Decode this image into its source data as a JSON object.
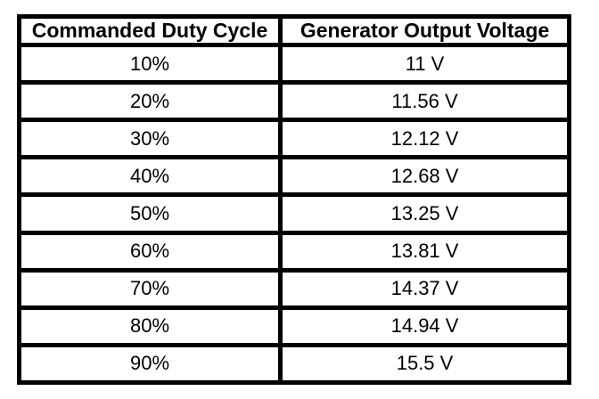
{
  "table": {
    "columns": [
      {
        "label": "Commanded Duty Cycle"
      },
      {
        "label": "Generator Output Voltage"
      }
    ],
    "rows": [
      {
        "duty_cycle": "10%",
        "voltage": "11 V"
      },
      {
        "duty_cycle": "20%",
        "voltage": "11.56 V"
      },
      {
        "duty_cycle": "30%",
        "voltage": "12.12 V"
      },
      {
        "duty_cycle": "40%",
        "voltage": "12.68 V"
      },
      {
        "duty_cycle": "50%",
        "voltage": "13.25 V"
      },
      {
        "duty_cycle": "60%",
        "voltage": "13.81 V"
      },
      {
        "duty_cycle": "70%",
        "voltage": "14.37 V"
      },
      {
        "duty_cycle": "80%",
        "voltage": "14.94 V"
      },
      {
        "duty_cycle": "90%",
        "voltage": "15.5 V"
      }
    ]
  },
  "colors": {
    "border": "#000000",
    "background": "#ffffff",
    "text": "#000000"
  },
  "chart_data": {
    "type": "table",
    "title": "",
    "columns": [
      "Commanded Duty Cycle",
      "Generator Output Voltage"
    ],
    "categories": [
      "10%",
      "20%",
      "30%",
      "40%",
      "50%",
      "60%",
      "70%",
      "80%",
      "90%"
    ],
    "values": [
      11,
      11.56,
      12.12,
      12.68,
      13.25,
      13.81,
      14.37,
      14.94,
      15.5
    ],
    "value_unit": "V"
  }
}
